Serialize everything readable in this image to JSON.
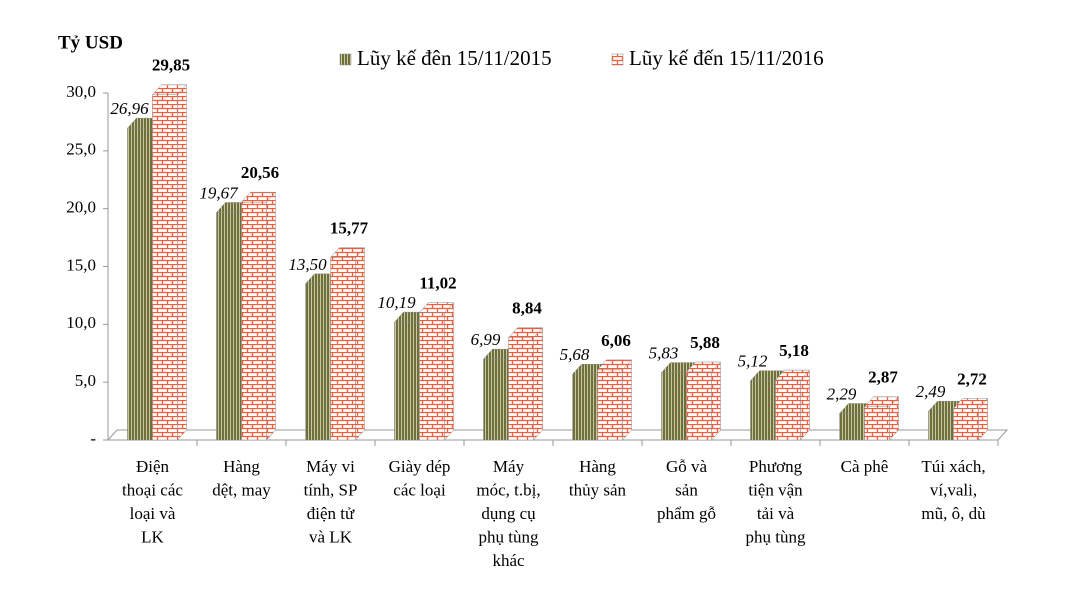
{
  "chart_data": {
    "type": "bar",
    "y_axis_label": "Tỷ USD",
    "categories": [
      [
        "Điện",
        "thoại các",
        "loại và",
        "LK"
      ],
      [
        "Hàng",
        "dệt, may"
      ],
      [
        "Máy vi",
        "tính, SP",
        "điện tử",
        "và LK"
      ],
      [
        "Giày dép",
        "các loại"
      ],
      [
        "Máy",
        "móc, t.bị,",
        "dụng cụ",
        "phụ tùng",
        "khác"
      ],
      [
        "Hàng",
        "thủy sản"
      ],
      [
        "Gỗ và",
        "sản",
        "phẩm gỗ"
      ],
      [
        "Phương",
        "tiện vận",
        "tải và",
        "phụ tùng"
      ],
      [
        "Cà phê"
      ],
      [
        "Túi xách,",
        "ví,vali,",
        "mũ, ô, dù"
      ]
    ],
    "series": [
      {
        "name": "Lũy kế đên 15/11/2015",
        "color": "#6e6f3c",
        "values": [
          26.96,
          19.67,
          13.5,
          10.19,
          6.99,
          5.68,
          5.83,
          5.12,
          2.29,
          2.49
        ],
        "value_labels": [
          "26,96",
          "19,67",
          "13,50",
          "10,19",
          "6,99",
          "5,68",
          "5,83",
          "5,12",
          "2,29",
          "2,49"
        ]
      },
      {
        "name": "Lũy kế đến 15/11/2016",
        "color": "#ff5a36",
        "values": [
          29.85,
          20.56,
          15.77,
          11.02,
          8.84,
          6.06,
          5.88,
          5.18,
          2.87,
          2.72
        ],
        "value_labels": [
          "29,85",
          "20,56",
          "15,77",
          "11,02",
          "8,84",
          "6,06",
          "5,88",
          "5,18",
          "2,87",
          "2,72"
        ]
      }
    ],
    "ylim": [
      0,
      30
    ],
    "yticks": [
      {
        "value": 0,
        "label": "-"
      },
      {
        "value": 5,
        "label": "5,0"
      },
      {
        "value": 10,
        "label": "10,0"
      },
      {
        "value": 15,
        "label": "15,0"
      },
      {
        "value": 20,
        "label": "20,0"
      },
      {
        "value": 25,
        "label": "25,0"
      },
      {
        "value": 30,
        "label": "30,0"
      }
    ],
    "grid": false
  }
}
